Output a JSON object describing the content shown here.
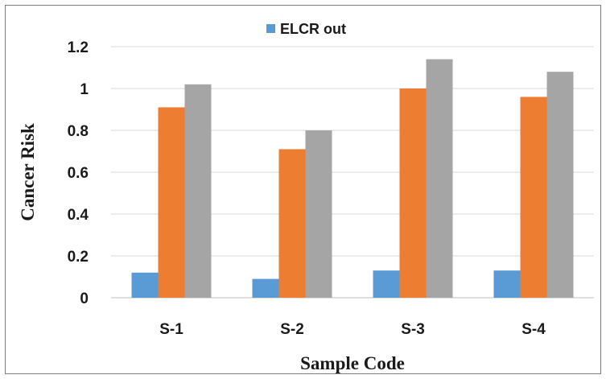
{
  "chart_data": {
    "type": "bar",
    "title": "",
    "xlabel": "Sample Code",
    "ylabel": "Cancer Risk",
    "categories": [
      "S-1",
      "S-2",
      "S-3",
      "S-4"
    ],
    "ylim": [
      0,
      1.2
    ],
    "yticks": [
      "0",
      "0.2",
      "0.4",
      "0.6",
      "0.8",
      "1",
      "1.2"
    ],
    "grid": true,
    "legend_position": "top",
    "series": [
      {
        "name": "ELCR out",
        "color": "#5b9bd5",
        "values": [
          0.12,
          0.09,
          0.13,
          0.13
        ]
      },
      {
        "color": "#ed7d31",
        "values": [
          0.91,
          0.71,
          1.0,
          0.96
        ]
      },
      {
        "color": "#a5a5a5",
        "values": [
          1.02,
          0.8,
          1.14,
          1.08
        ]
      }
    ]
  }
}
